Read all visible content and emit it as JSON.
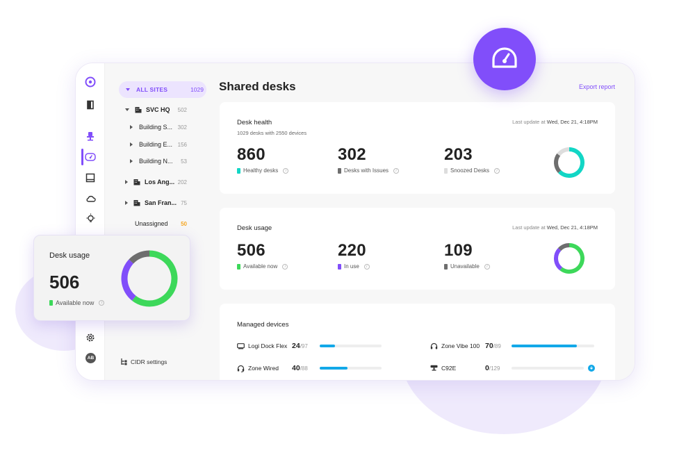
{
  "colors": {
    "accent": "#814efa",
    "teal": "#12d6c5",
    "green": "#3dd85a",
    "gray": "#6e6e6e",
    "light_gray": "#dddddd",
    "blue": "#12a8e8",
    "orange": "#f5a623"
  },
  "rail": {
    "icons": [
      "logo-icon",
      "door-icon",
      "chair-icon",
      "gauge-icon",
      "display-icon",
      "cloud-icon",
      "lightbulb-icon",
      "gear-icon"
    ],
    "avatar": "AB"
  },
  "tree": {
    "all_sites_label": "ALL SITES",
    "all_sites_count": "1029",
    "items": [
      {
        "name": "SVC HQ",
        "count": "502"
      },
      {
        "name": "Building S...",
        "count": "302"
      },
      {
        "name": "Building E...",
        "count": "156"
      },
      {
        "name": "Building N...",
        "count": "53"
      },
      {
        "name": "Los Ang...",
        "count": "202"
      },
      {
        "name": "San Fran...",
        "count": "75"
      },
      {
        "name": "Unassigned",
        "count": "50"
      }
    ],
    "cidr_label": "CIDR settings"
  },
  "main": {
    "title": "Shared desks",
    "export_label": "Export report"
  },
  "desk_health": {
    "title": "Desk health",
    "desks": "1029 desks",
    "with_text": "with",
    "devices": "2550 devices",
    "last_update_prefix": "Last update at",
    "last_update": "Wed, Dec 21, 4:18PM",
    "stats": [
      {
        "value": "860",
        "label": "Healthy desks",
        "color": "#12d6c5"
      },
      {
        "value": "302",
        "label": "Desks with Issues",
        "color": "#6e6e6e"
      },
      {
        "value": "203",
        "label": "Snoozed Desks",
        "color": "#dddddd"
      }
    ]
  },
  "desk_usage": {
    "title": "Desk usage",
    "last_update_prefix": "Last update at",
    "last_update": "Wed, Dec 21, 4:18PM",
    "stats": [
      {
        "value": "506",
        "label": "Available now",
        "color": "#3dd85a"
      },
      {
        "value": "220",
        "label": "In use",
        "color": "#814efa"
      },
      {
        "value": "109",
        "label": "Unavailable",
        "color": "#6e6e6e"
      }
    ]
  },
  "managed_devices": {
    "title": "Managed devices",
    "items": [
      {
        "name": "Logi Dock Flex",
        "count": "24",
        "total": "/97",
        "fill": 0.25,
        "icon": "dock-icon"
      },
      {
        "name": "Zone Vibe 100",
        "count": "70",
        "total": "/89",
        "fill": 0.79,
        "icon": "headset-icon"
      },
      {
        "name": "Zone Wired",
        "count": "40",
        "total": "/88",
        "fill": 0.45,
        "icon": "headset-icon"
      },
      {
        "name": "C92E",
        "count": "0",
        "total": "/129",
        "fill": 0,
        "icon": "webcam-icon"
      }
    ]
  },
  "floating_card": {
    "title": "Desk usage",
    "value": "506",
    "label": "Available now"
  }
}
